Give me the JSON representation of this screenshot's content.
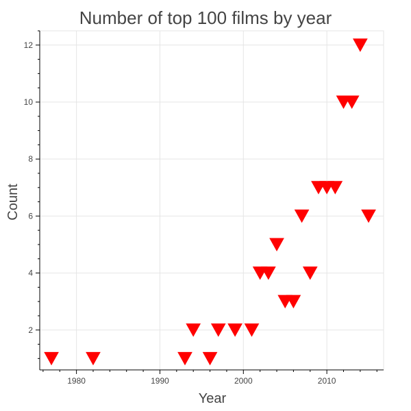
{
  "chart_data": {
    "type": "scatter",
    "title": "Number of top 100 films by year",
    "xlabel": "Year",
    "ylabel": "Count",
    "x_ticks": [
      1980,
      1990,
      2000,
      2010
    ],
    "y_ticks": [
      2,
      4,
      6,
      8,
      10,
      12
    ],
    "xlim": [
      1975.6,
      2016.8
    ],
    "ylim": [
      0.6,
      12.5
    ],
    "grid": true,
    "marker": "inverted-triangle",
    "marker_color": "#ff0000",
    "series": [
      {
        "x": [
          1977,
          1982,
          1993,
          1994,
          1996,
          1997,
          1999,
          2001,
          2002,
          2003,
          2004,
          2005,
          2006,
          2007,
          2008,
          2009,
          2010,
          2011,
          2012,
          2013,
          2014,
          2015
        ],
        "y": [
          1,
          1,
          1,
          2,
          1,
          2,
          2,
          2,
          4,
          4,
          5,
          3,
          3,
          6,
          4,
          7,
          7,
          7,
          10,
          10,
          12,
          6
        ]
      }
    ]
  }
}
